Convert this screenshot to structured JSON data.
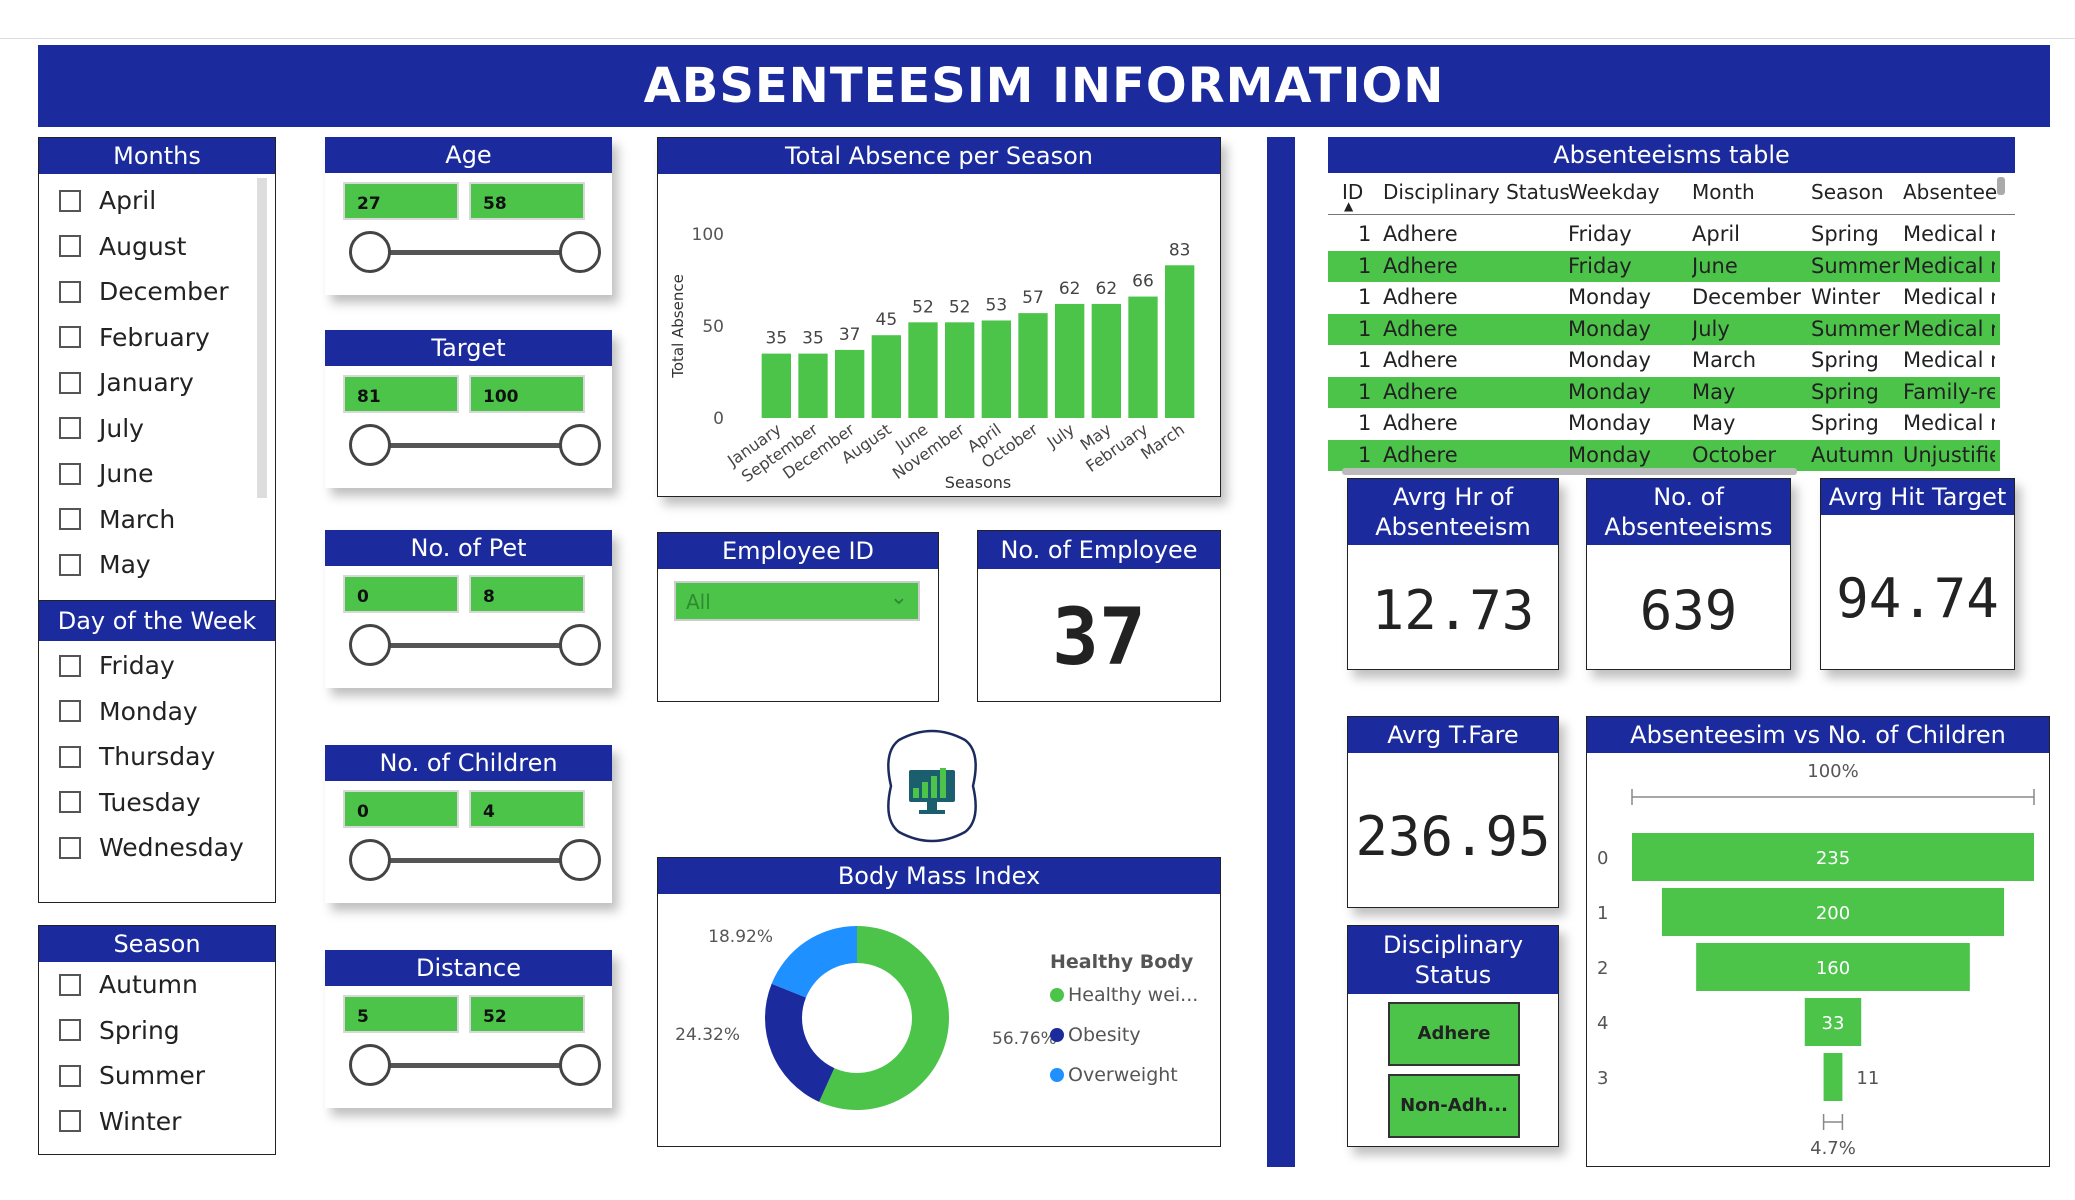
{
  "header": {
    "title": "ABSENTEESIM INFORMATION"
  },
  "months_slicer": {
    "title": "Months",
    "items": [
      "April",
      "August",
      "December",
      "February",
      "January",
      "July",
      "June",
      "March",
      "May"
    ]
  },
  "weekday_slicer": {
    "title": "Day of the Week",
    "items": [
      "Friday",
      "Monday",
      "Thursday",
      "Tuesday",
      "Wednesday"
    ]
  },
  "season_slicer": {
    "title": "Season",
    "items": [
      "Autumn",
      "Spring",
      "Summer",
      "Winter"
    ]
  },
  "range_filters": [
    {
      "title": "Age",
      "min": "27",
      "max": "58"
    },
    {
      "title": "Target",
      "min": "81",
      "max": "100"
    },
    {
      "title": "No. of Pet",
      "min": "0",
      "max": "8"
    },
    {
      "title": "No. of Children",
      "min": "0",
      "max": "4"
    },
    {
      "title": "Distance",
      "min": "5",
      "max": "52"
    }
  ],
  "season_chart": {
    "title": "Total Absence per Season",
    "chart_data": {
      "type": "bar",
      "categories": [
        "January",
        "September",
        "December",
        "August",
        "June",
        "November",
        "April",
        "October",
        "July",
        "May",
        "February",
        "March"
      ],
      "values": [
        35,
        35,
        37,
        45,
        52,
        52,
        53,
        57,
        62,
        62,
        66,
        83
      ],
      "xlabel": "Seasons",
      "ylabel": "Total Absence",
      "ylim": [
        0,
        100
      ],
      "yticks": [
        "100",
        "50",
        "0"
      ],
      "bar_color": "#4cc44a"
    }
  },
  "employee_id": {
    "title": "Employee ID",
    "selected": "All"
  },
  "employee_count": {
    "title": "No. of Employee",
    "value": "37"
  },
  "bmi_chart": {
    "title": "Body Mass Index",
    "chart_data": {
      "type": "pie",
      "legend_title": "Healthy Body",
      "slices": [
        {
          "name": "Healthy wei...",
          "label": "56.76%",
          "value": 56.76,
          "color": "#4cc44a"
        },
        {
          "name": "Obesity",
          "label": "24.32%",
          "value": 24.32,
          "color": "#1b2b9e"
        },
        {
          "name": "Overweight",
          "label": "18.92%",
          "value": 18.92,
          "color": "#1e90ff"
        }
      ]
    }
  },
  "table": {
    "title": "Absenteeisms table",
    "columns": [
      "ID",
      "Disciplinary Status",
      "Weekday",
      "Month",
      "Season",
      "Absentee"
    ],
    "rows": [
      [
        "1",
        "Adhere",
        "Friday",
        "April",
        "Spring",
        "Medical re"
      ],
      [
        "1",
        "Adhere",
        "Friday",
        "June",
        "Summer",
        "Medical re"
      ],
      [
        "1",
        "Adhere",
        "Monday",
        "December",
        "Winter",
        "Medical re"
      ],
      [
        "1",
        "Adhere",
        "Monday",
        "July",
        "Summer",
        "Medical re"
      ],
      [
        "1",
        "Adhere",
        "Monday",
        "March",
        "Spring",
        "Medical re"
      ],
      [
        "1",
        "Adhere",
        "Monday",
        "May",
        "Spring",
        "Family-rel"
      ],
      [
        "1",
        "Adhere",
        "Monday",
        "May",
        "Spring",
        "Medical re"
      ],
      [
        "1",
        "Adhere",
        "Monday",
        "October",
        "Autumn",
        "Unjustifie"
      ]
    ]
  },
  "kpis": {
    "avg_hr": {
      "title": "Avrg Hr of Absenteeism",
      "value": "12.73"
    },
    "count": {
      "title": "No. of Absenteeisms",
      "value": "639"
    },
    "hit_target": {
      "title": "Avrg Hit Target",
      "value": "94.74"
    },
    "tfare": {
      "title": "Avrg T.Fare",
      "value": "236.95"
    }
  },
  "disciplinary": {
    "title": "Disciplinary Status",
    "options": [
      "Adhere",
      "Non-Adh..."
    ]
  },
  "funnel_chart": {
    "title": "Absenteesim vs No. of Children",
    "top_label": "100%",
    "bottom_label": "4.7%",
    "chart_data": {
      "type": "bar",
      "categories": [
        "0",
        "1",
        "2",
        "4",
        "3"
      ],
      "values": [
        235,
        200,
        160,
        33,
        11
      ]
    }
  },
  "colors": {
    "blue": "#1b2b9e",
    "green": "#4cc44a",
    "light_blue": "#1e90ff"
  }
}
